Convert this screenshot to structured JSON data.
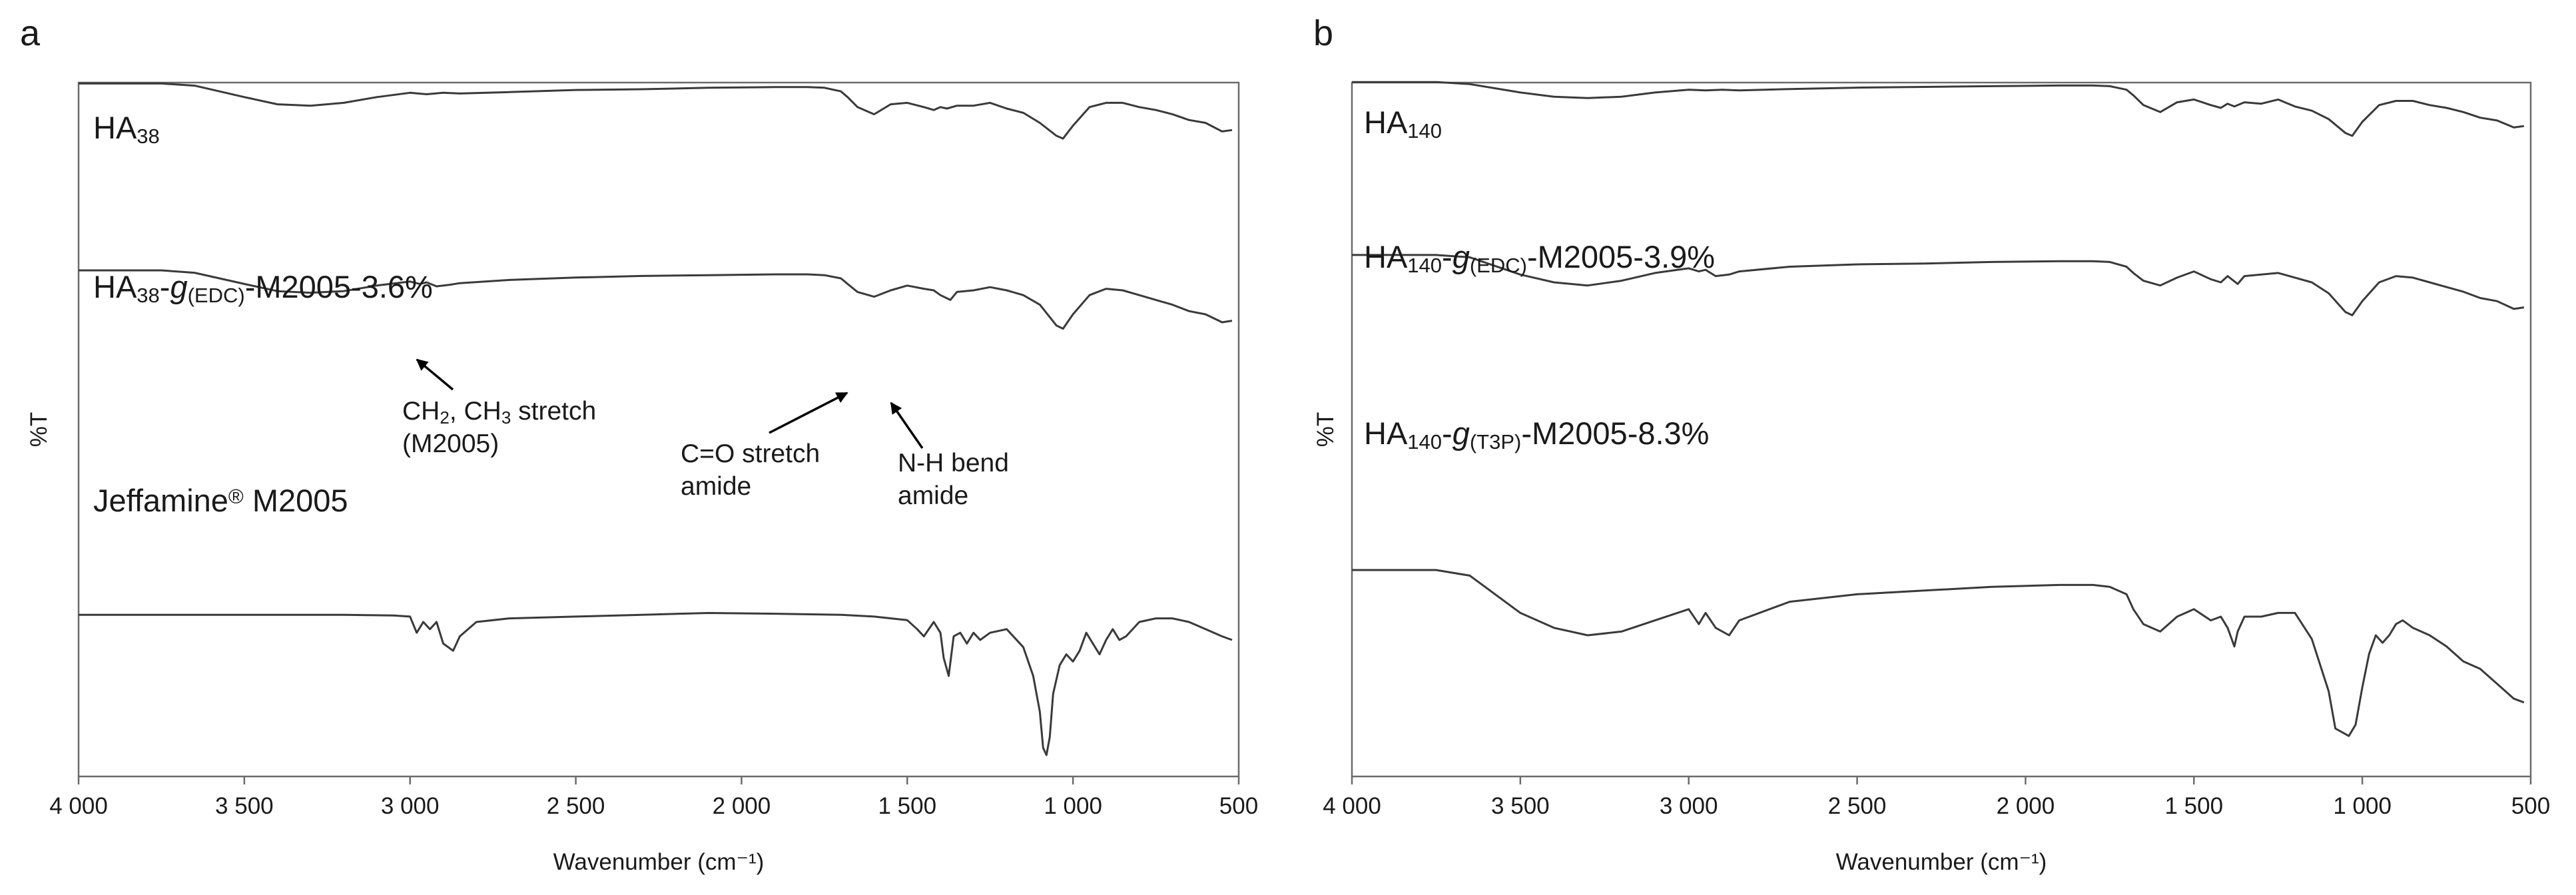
{
  "chart_data": [
    {
      "panel": "a",
      "type": "line",
      "xlabel": "Wavenumber (cm⁻¹)",
      "ylabel": "%T",
      "xlim": [
        4000,
        500
      ],
      "x_reversed": true,
      "xticks": [
        "4 000",
        "3 500",
        "3 000",
        "2 500",
        "2 000",
        "1 500",
        "1 000",
        "500"
      ],
      "grid": false,
      "series": [
        {
          "name": "HA₃₈",
          "label_parts": [
            {
              "t": "HA"
            },
            {
              "t": "38",
              "sub": true
            }
          ],
          "color": "#3a3a3a",
          "x": [
            4000,
            3750,
            3650,
            3500,
            3400,
            3300,
            3200,
            3100,
            3000,
            2950,
            2900,
            2850,
            2700,
            2500,
            2300,
            2100,
            1900,
            1800,
            1750,
            1700,
            1680,
            1650,
            1600,
            1550,
            1500,
            1450,
            1420,
            1400,
            1380,
            1350,
            1300,
            1250,
            1200,
            1150,
            1100,
            1050,
            1030,
            1000,
            950,
            900,
            850,
            800,
            750,
            700,
            650,
            600,
            550,
            520
          ],
          "y": [
            97.5,
            97.5,
            96,
            88,
            83,
            82,
            84,
            88,
            91,
            90,
            91,
            90.5,
            91.5,
            93,
            93.5,
            94.5,
            95,
            95,
            94.5,
            92,
            88,
            81,
            76,
            83,
            84,
            81,
            79,
            81,
            80,
            82,
            82,
            84,
            80,
            77,
            70,
            61,
            59,
            68,
            81,
            84,
            84,
            81,
            79,
            76,
            72,
            70,
            64,
            65
          ]
        },
        {
          "name": "HA₃₈-g(EDC)-M2005-3.6%",
          "label_parts": [
            {
              "t": "HA"
            },
            {
              "t": "38",
              "sub": true
            },
            {
              "t": "-"
            },
            {
              "t": "g",
              "it": true
            },
            {
              "t": "(EDC)",
              "sub": true
            },
            {
              "t": "-M2005-3.6%"
            }
          ],
          "color": "#3a3a3a",
          "x": [
            4000,
            3750,
            3650,
            3500,
            3400,
            3300,
            3200,
            3100,
            3000,
            2970,
            2950,
            2920,
            2880,
            2850,
            2700,
            2500,
            2300,
            2100,
            1900,
            1800,
            1750,
            1700,
            1680,
            1650,
            1600,
            1550,
            1500,
            1450,
            1420,
            1400,
            1370,
            1350,
            1300,
            1250,
            1200,
            1150,
            1100,
            1050,
            1030,
            1000,
            950,
            900,
            850,
            800,
            750,
            700,
            650,
            600,
            550,
            520
          ],
          "y": [
            72.5,
            72.5,
            71,
            64,
            59.5,
            58.5,
            59.5,
            63,
            65.5,
            64,
            65,
            62.5,
            63.5,
            64.5,
            66.5,
            68,
            69,
            69.5,
            70,
            70,
            69.5,
            67.5,
            64,
            59,
            56,
            60,
            63,
            61,
            60,
            57,
            54,
            59,
            60,
            62,
            60,
            57,
            51,
            38,
            36,
            45,
            57,
            61,
            60,
            57,
            54,
            51,
            47,
            45,
            40,
            41
          ]
        },
        {
          "name": "Jeffamine® M2005",
          "label_parts": [
            {
              "t": "Jeffamine"
            },
            {
              "t": "®",
              "sup": true
            },
            {
              "t": " M2005"
            }
          ],
          "color": "#3a3a3a",
          "x": [
            4000,
            3500,
            3200,
            3050,
            3000,
            2980,
            2960,
            2940,
            2920,
            2900,
            2870,
            2850,
            2800,
            2700,
            2500,
            2300,
            2100,
            1900,
            1700,
            1600,
            1500,
            1470,
            1450,
            1420,
            1400,
            1390,
            1375,
            1360,
            1340,
            1320,
            1300,
            1280,
            1250,
            1200,
            1150,
            1120,
            1100,
            1090,
            1080,
            1070,
            1060,
            1040,
            1020,
            1000,
            980,
            960,
            940,
            920,
            900,
            880,
            860,
            840,
            800,
            750,
            700,
            650,
            600,
            550,
            520
          ],
          "y": [
            42,
            42,
            42,
            41.8,
            41.5,
            37,
            40,
            38,
            40,
            34,
            32,
            36,
            40,
            41,
            41.5,
            42,
            42.5,
            42.3,
            42,
            41.5,
            40.5,
            38,
            36,
            40,
            37,
            30,
            25,
            36,
            37,
            34,
            37,
            35,
            37,
            38,
            33,
            25,
            15,
            5,
            3,
            8,
            20,
            28,
            31,
            29,
            32,
            37,
            34,
            31,
            35,
            38,
            35,
            36,
            40,
            41,
            41,
            40,
            38,
            36,
            35
          ]
        }
      ],
      "annotations": [
        {
          "lines": [
            [
              {
                "t": "CH"
              },
              {
                "t": "2",
                "sub": true
              },
              {
                "t": ", CH"
              },
              {
                "t": "3",
                "sub": true
              },
              {
                "t": " stretch"
              }
            ],
            [
              {
                "t": "(M2005)"
              }
            ]
          ]
        },
        {
          "lines": [
            [
              {
                "t": "C=O stretch"
              }
            ],
            [
              {
                "t": "amide"
              }
            ]
          ]
        },
        {
          "lines": [
            [
              {
                "t": "N-H bend"
              }
            ],
            [
              {
                "t": "amide"
              }
            ]
          ]
        }
      ]
    },
    {
      "panel": "b",
      "type": "line",
      "xlabel": "Wavenumber (cm⁻¹)",
      "ylabel": "%T",
      "xlim": [
        4000,
        500
      ],
      "x_reversed": true,
      "xticks": [
        "4 000",
        "3 500",
        "3 000",
        "2 500",
        "2 000",
        "1 500",
        "1 000",
        "500"
      ],
      "grid": false,
      "series": [
        {
          "name": "HA₁₄₀",
          "label_parts": [
            {
              "t": "HA"
            },
            {
              "t": "140",
              "sub": true
            }
          ],
          "color": "#3a3a3a",
          "x": [
            4000,
            3750,
            3650,
            3500,
            3400,
            3300,
            3200,
            3100,
            3000,
            2950,
            2900,
            2850,
            2700,
            2500,
            2300,
            2100,
            1900,
            1800,
            1750,
            1700,
            1680,
            1650,
            1600,
            1550,
            1500,
            1450,
            1420,
            1400,
            1380,
            1350,
            1300,
            1250,
            1200,
            1150,
            1100,
            1050,
            1030,
            1000,
            950,
            900,
            850,
            800,
            750,
            700,
            650,
            600,
            550,
            520
          ],
          "y": [
            98.5,
            98.5,
            97,
            91,
            88,
            87,
            88,
            91,
            93,
            92.5,
            93,
            92.5,
            93.5,
            94.5,
            95,
            95.5,
            96,
            96,
            95.5,
            93,
            89,
            82,
            77,
            84,
            86,
            82,
            80,
            83,
            81,
            84,
            83,
            86,
            81,
            78,
            72,
            62,
            60,
            70,
            82,
            85,
            85,
            82,
            80,
            77,
            73,
            71,
            66,
            67
          ]
        },
        {
          "name": "HA₁₄₀-g(EDC)-M2005-3.9%",
          "label_parts": [
            {
              "t": "HA"
            },
            {
              "t": "140",
              "sub": true
            },
            {
              "t": "-"
            },
            {
              "t": "g",
              "it": true
            },
            {
              "t": "(EDC)",
              "sub": true
            },
            {
              "t": "-M2005-3.9%"
            }
          ],
          "color": "#3a3a3a",
          "x": [
            4000,
            3750,
            3650,
            3500,
            3400,
            3300,
            3200,
            3100,
            3000,
            2970,
            2950,
            2920,
            2880,
            2850,
            2700,
            2500,
            2300,
            2100,
            1900,
            1800,
            1750,
            1700,
            1680,
            1650,
            1600,
            1550,
            1500,
            1450,
            1420,
            1400,
            1370,
            1350,
            1300,
            1250,
            1200,
            1150,
            1100,
            1050,
            1030,
            1000,
            950,
            900,
            850,
            800,
            750,
            700,
            650,
            600,
            550,
            520
          ],
          "y": [
            77.5,
            77.5,
            76,
            65,
            60,
            58,
            61,
            66,
            69,
            67,
            68,
            64,
            65,
            67,
            70,
            71.5,
            72,
            73,
            73.5,
            73.5,
            73,
            70,
            66,
            61,
            58,
            63,
            67,
            62,
            60,
            64,
            59,
            64,
            65,
            66,
            63,
            60,
            53,
            41,
            39,
            48,
            60,
            64,
            63,
            60,
            57,
            54,
            50,
            48,
            43,
            44
          ]
        },
        {
          "name": "HA₁₄₀-g(T3P)-M2005-8.3%",
          "label_parts": [
            {
              "t": "HA"
            },
            {
              "t": "140",
              "sub": true
            },
            {
              "t": "-"
            },
            {
              "t": "g",
              "it": true
            },
            {
              "t": "(T3P)",
              "sub": true
            },
            {
              "t": "-M2005-8.3%"
            }
          ],
          "color": "#3a3a3a",
          "x": [
            4000,
            3750,
            3650,
            3500,
            3400,
            3300,
            3200,
            3100,
            3000,
            2970,
            2950,
            2920,
            2880,
            2850,
            2700,
            2500,
            2300,
            2100,
            1900,
            1800,
            1750,
            1700,
            1680,
            1650,
            1600,
            1550,
            1500,
            1450,
            1420,
            1400,
            1380,
            1370,
            1350,
            1300,
            1250,
            1200,
            1150,
            1100,
            1080,
            1060,
            1040,
            1020,
            1000,
            980,
            960,
            940,
            920,
            900,
            880,
            850,
            800,
            750,
            700,
            650,
            600,
            550,
            520
          ],
          "y": [
            52.5,
            52.5,
            51,
            41,
            37,
            35,
            36,
            39,
            42,
            38,
            41,
            37,
            35,
            39,
            44,
            46,
            47,
            48,
            48.5,
            48.5,
            48,
            46,
            42,
            38,
            36,
            40,
            42,
            39,
            40,
            37,
            32,
            36,
            40,
            40,
            41,
            41,
            34,
            20,
            10,
            9,
            8,
            11,
            21,
            30,
            35,
            33,
            35,
            38,
            39,
            37,
            35,
            32,
            28,
            26,
            22,
            18,
            17
          ]
        }
      ],
      "annotations": []
    }
  ]
}
